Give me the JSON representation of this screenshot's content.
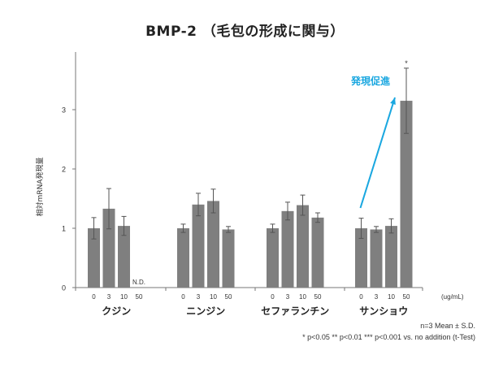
{
  "chart_data": {
    "type": "bar",
    "title": "BMP-2 （毛包の形成に関与）",
    "ylabel": "相対mRNA発現量",
    "xunit": "(ug/mL)",
    "ylim": [
      0,
      4
    ],
    "yticks": [
      0,
      1,
      2,
      3
    ],
    "colors": {
      "bar": "#7f7f7f",
      "axis": "#777777",
      "arrow": "#1aa7e0",
      "annotation": "#1aa7e0"
    },
    "groups": [
      {
        "name": "クジン",
        "bars": [
          {
            "dose": "0",
            "value": 1.0,
            "error": 0.18
          },
          {
            "dose": "3",
            "value": 1.33,
            "error": 0.34
          },
          {
            "dose": "10",
            "value": 1.04,
            "error": 0.16
          },
          {
            "dose": "50",
            "value": null,
            "label": "N.D."
          }
        ]
      },
      {
        "name": "ニンジン",
        "bars": [
          {
            "dose": "0",
            "value": 1.0,
            "error": 0.07
          },
          {
            "dose": "3",
            "value": 1.4,
            "error": 0.19
          },
          {
            "dose": "10",
            "value": 1.46,
            "error": 0.2
          },
          {
            "dose": "50",
            "value": 0.98,
            "error": 0.05
          }
        ]
      },
      {
        "name": "セファランチン",
        "bars": [
          {
            "dose": "0",
            "value": 1.0,
            "error": 0.07
          },
          {
            "dose": "3",
            "value": 1.29,
            "error": 0.15
          },
          {
            "dose": "10",
            "value": 1.39,
            "error": 0.17
          },
          {
            "dose": "50",
            "value": 1.18,
            "error": 0.08
          }
        ]
      },
      {
        "name": "サンショウ",
        "bars": [
          {
            "dose": "0",
            "value": 1.0,
            "error": 0.17
          },
          {
            "dose": "3",
            "value": 0.98,
            "error": 0.05
          },
          {
            "dose": "10",
            "value": 1.04,
            "error": 0.12
          },
          {
            "dose": "50",
            "value": 3.15,
            "error": 0.55,
            "significance": "*"
          }
        ]
      }
    ],
    "annotation": {
      "text": "発現促進",
      "arrow_from": "サンショウ 0",
      "arrow_to": "サンショウ 50"
    }
  },
  "notes": {
    "line1": "n=3 Mean ± S.D.",
    "line2": "* p<0.05 ** p<0.01 *** p<0.001 vs. no addition (t-Test)"
  }
}
